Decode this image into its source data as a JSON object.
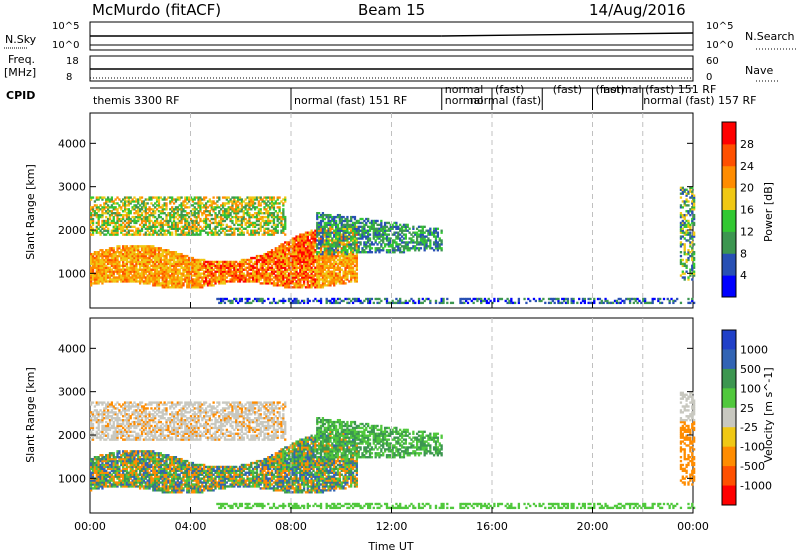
{
  "header": {
    "station": "McMurdo (fitACF)",
    "beam": "Beam 15",
    "date": "14/Aug/2016"
  },
  "side_labels": {
    "nsky": "N.Sky",
    "freq": "Freq.",
    "freq_unit": "[MHz]",
    "cpid": "CPID",
    "nsearch": "N.Search",
    "nave": "Nave",
    "nsky_ticks": [
      "10^5",
      "10^0"
    ],
    "freq_ticks": [
      "18",
      "8"
    ],
    "nsearch_ticks": [
      "10^5",
      "10^0"
    ],
    "nave_ticks": [
      "60",
      "0"
    ]
  },
  "cpid_labels": [
    {
      "text": "themis 3300 RF",
      "time": 0.0
    },
    {
      "text": "normal (fast) 151 RF",
      "time": 8.0
    },
    {
      "text": "normal",
      "time": 14.0
    },
    {
      "text": "normal",
      "time": 14.0
    },
    {
      "text": "(fast)",
      "time": 16.0
    },
    {
      "text": "normal (fast)",
      "time": 15.0
    },
    {
      "text": "(fast)",
      "time": 18.3
    },
    {
      "text": "(fast)",
      "time": 20.0
    },
    {
      "text": "normal (fast) 151 RF",
      "time": 20.3
    },
    {
      "text": "normal (fast) 157 RF",
      "time": 21.9
    }
  ],
  "colors": {
    "power_scale": [
      "#0000ff",
      "#2850b4",
      "#3c9650",
      "#32c832",
      "#f0c814",
      "#ff8c00",
      "#ff5000",
      "#ff0000"
    ],
    "velocity_scale": [
      "#2040c8",
      "#3264b4",
      "#3c9650",
      "#50c83c",
      "#c8c8c0",
      "#f0c814",
      "#ff8c00",
      "#ff5000",
      "#ff0000"
    ],
    "gridline": "#c0c0c0"
  },
  "chart_data": [
    {
      "type": "heatmap",
      "title": "",
      "xlabel": "",
      "ylabel": "Slant Range [km]",
      "xlim": [
        0,
        24
      ],
      "ylim": [
        200,
        4700
      ],
      "yticks": [
        1000,
        2000,
        3000,
        4000
      ],
      "colorbar": {
        "label": "Power [dB]",
        "ticks": [
          4,
          8,
          12,
          16,
          20,
          24,
          28
        ],
        "range": [
          0,
          32
        ]
      }
    },
    {
      "type": "heatmap",
      "title": "",
      "xlabel": "Time UT",
      "ylabel": "Slant Range [km]",
      "xlim": [
        0,
        24
      ],
      "ylim": [
        200,
        4700
      ],
      "xticks": [
        "00:00",
        "04:00",
        "08:00",
        "12:00",
        "16:00",
        "20:00",
        "00:00"
      ],
      "yticks": [
        1000,
        2000,
        3000,
        4000
      ],
      "colorbar": {
        "label": "Velocity [m s^-1]",
        "ticks": [
          "1000",
          "500",
          "100",
          "25",
          "-25",
          "-100",
          "-500",
          "-1000"
        ]
      }
    }
  ]
}
